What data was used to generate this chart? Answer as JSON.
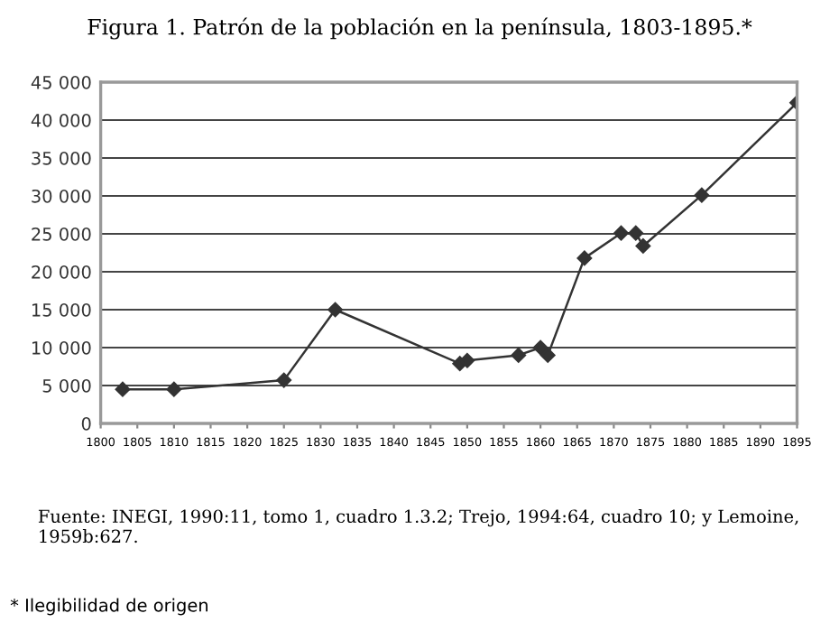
{
  "chart_data": {
    "type": "line",
    "title": "Figura 1. Patrón de la población en la península, 1803-1895.*",
    "x": [
      1803,
      1810,
      1825,
      1832,
      1849,
      1850,
      1857,
      1860,
      1861,
      1866,
      1871,
      1873,
      1874,
      1882,
      1895
    ],
    "series": [
      {
        "color": "#333333",
        "values": [
          4500,
          4500,
          5700,
          15000,
          7900,
          8300,
          9000,
          10000,
          9000,
          21800,
          25100,
          25100,
          23400,
          30100,
          42300
        ]
      }
    ],
    "xlim": [
      1800,
      1895
    ],
    "xticks": [
      1800,
      1805,
      1810,
      1815,
      1820,
      1825,
      1830,
      1835,
      1840,
      1845,
      1850,
      1855,
      1860,
      1865,
      1870,
      1875,
      1880,
      1885,
      1890,
      1895
    ],
    "ylim": [
      0,
      45000
    ],
    "yticks": [
      0,
      {
        "value": 5000,
        "label": "5 000"
      },
      {
        "value": 10000,
        "label": "10 000"
      },
      {
        "value": 15000,
        "label": "15 000"
      },
      {
        "value": 20000,
        "label": "20 000"
      },
      {
        "value": 25000,
        "label": "25 000"
      },
      {
        "value": 30000,
        "label": "30 000"
      },
      {
        "value": 35000,
        "label": "35 000"
      },
      {
        "value": 40000,
        "label": "40 000"
      },
      {
        "value": 45000,
        "label": "45 000"
      }
    ],
    "grid": "y",
    "marker": "diamond",
    "line_style": "solid",
    "annotations": [
      "Fuente: INEGI, 1990:11, tomo 1, cuadro 1.3.2; Trejo, 1994:64, cuadro 10; y Lemoine, 1959b:627.",
      "* Ilegibilidad de origen"
    ]
  }
}
